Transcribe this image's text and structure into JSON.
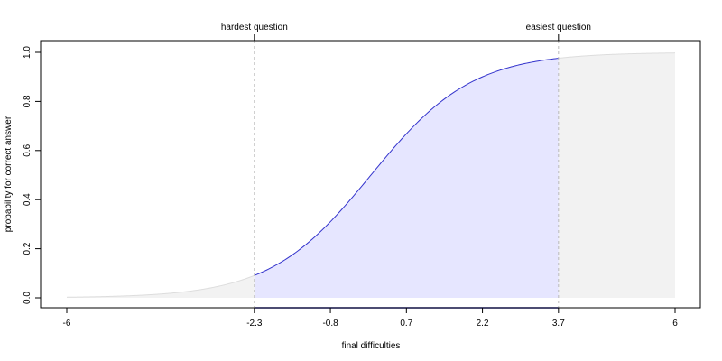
{
  "chart_data": {
    "type": "line",
    "title": "",
    "xlabel": "final difficulties",
    "ylabel": "probability for correct answer",
    "xlim": [
      -6,
      6
    ],
    "ylim": [
      0,
      1
    ],
    "x_ticks": [
      -6,
      -2.3,
      -0.8,
      0.7,
      2.2,
      3.7,
      6
    ],
    "x_tick_labels": [
      "-6",
      "-2.3",
      "-0.8",
      "0.7",
      "2.2",
      "3.7",
      "6"
    ],
    "y_ticks": [
      0,
      0.2,
      0.4,
      0.6,
      0.8,
      1.0
    ],
    "y_tick_labels": [
      "0.0",
      "0.2",
      "0.4",
      "0.6",
      "0.8",
      "1.0"
    ],
    "curve": {
      "function": "logistic",
      "location": 0,
      "scale": 1,
      "x_range": [
        -6,
        6
      ]
    },
    "highlight_range": [
      -2.3,
      3.7
    ],
    "markers": [
      {
        "x": -2.3,
        "label": "hardest question"
      },
      {
        "x": 3.7,
        "label": "easiest question"
      }
    ],
    "grid": false,
    "legend": "none",
    "colors": {
      "curve": "#3333cc",
      "highlight_fill": "#e6e6ff",
      "background_fill": "#f2f2f2",
      "marker_line": "#bbbbbb",
      "axis_segment": "#3333cc"
    }
  }
}
